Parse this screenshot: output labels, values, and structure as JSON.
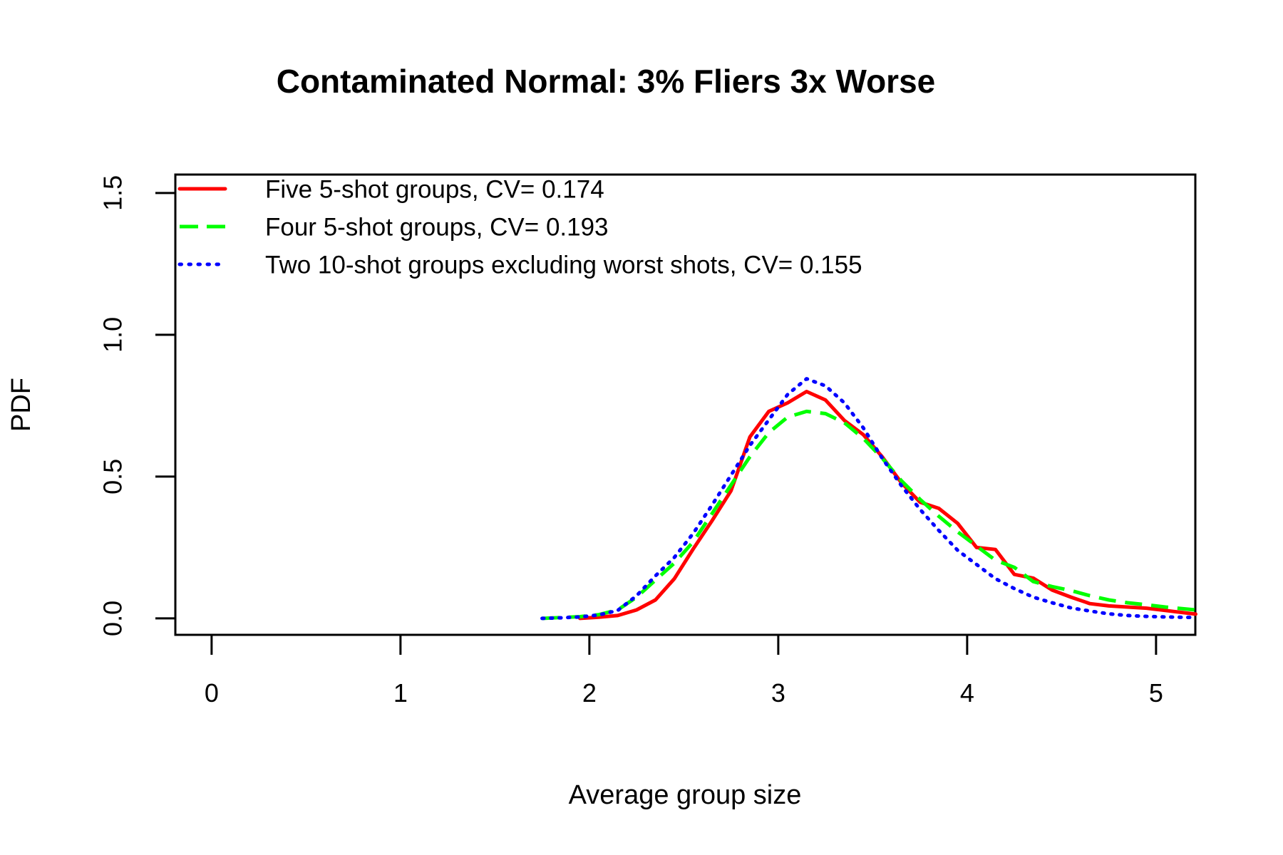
{
  "title": "Contaminated Normal: 3% Fliers 3x Worse",
  "axes": {
    "xlabel": "Average group size",
    "ylabel": "PDF"
  },
  "legend": {
    "items": [
      {
        "label": "Five 5-shot groups, CV= 0.174",
        "color": "#FF0000",
        "style": "solid"
      },
      {
        "label": "Four 5-shot groups, CV= 0.193",
        "color": "#00FF00",
        "style": "dashed"
      },
      {
        "label": "Two 10-shot groups excluding worst shots, CV= 0.155",
        "color": "#0000FF",
        "style": "dotted"
      }
    ]
  },
  "colors": {
    "background": "#FFFFFF",
    "axis": "#000000",
    "text": "#000000"
  },
  "chart_data": {
    "type": "line",
    "title": "Contaminated Normal: 3% Fliers 3x Worse",
    "xlabel": "Average group size",
    "ylabel": "PDF",
    "xlim": [
      -0.192,
      5.208
    ],
    "ylim": [
      -0.058,
      1.565
    ],
    "x_ticks": [
      0,
      1,
      2,
      3,
      4,
      5
    ],
    "x_tick_labels": [
      "0",
      "1",
      "2",
      "3",
      "4",
      "5"
    ],
    "y_ticks": [
      0,
      0.5,
      1.0,
      1.5
    ],
    "y_tick_labels": [
      "0.0",
      "0.5",
      "1.0",
      "1.5"
    ],
    "grid": false,
    "legend_position": "top-left-inside",
    "series": [
      {
        "name": "Five 5-shot groups, CV= 0.174",
        "color": "#FF0000",
        "style": "solid",
        "points": [
          [
            1.95,
            0.0
          ],
          [
            2.05,
            0.004
          ],
          [
            2.15,
            0.01
          ],
          [
            2.25,
            0.03
          ],
          [
            2.35,
            0.065
          ],
          [
            2.45,
            0.14
          ],
          [
            2.55,
            0.245
          ],
          [
            2.65,
            0.345
          ],
          [
            2.75,
            0.45
          ],
          [
            2.85,
            0.64
          ],
          [
            2.95,
            0.73
          ],
          [
            3.05,
            0.76
          ],
          [
            3.15,
            0.8
          ],
          [
            3.25,
            0.77
          ],
          [
            3.35,
            0.698
          ],
          [
            3.45,
            0.648
          ],
          [
            3.55,
            0.57
          ],
          [
            3.65,
            0.48
          ],
          [
            3.75,
            0.41
          ],
          [
            3.85,
            0.388
          ],
          [
            3.95,
            0.335
          ],
          [
            4.05,
            0.25
          ],
          [
            4.15,
            0.243
          ],
          [
            4.25,
            0.155
          ],
          [
            4.35,
            0.142
          ],
          [
            4.45,
            0.1
          ],
          [
            4.55,
            0.075
          ],
          [
            4.65,
            0.052
          ],
          [
            4.75,
            0.044
          ],
          [
            4.85,
            0.04
          ],
          [
            4.95,
            0.036
          ],
          [
            5.05,
            0.028
          ],
          [
            5.21,
            0.015
          ]
        ]
      },
      {
        "name": "Four 5-shot groups, CV= 0.193",
        "color": "#00FF00",
        "style": "dashed",
        "points": [
          [
            1.75,
            0.0
          ],
          [
            1.85,
            0.003
          ],
          [
            1.95,
            0.006
          ],
          [
            2.05,
            0.013
          ],
          [
            2.15,
            0.03
          ],
          [
            2.25,
            0.075
          ],
          [
            2.35,
            0.135
          ],
          [
            2.45,
            0.195
          ],
          [
            2.55,
            0.27
          ],
          [
            2.65,
            0.37
          ],
          [
            2.75,
            0.47
          ],
          [
            2.85,
            0.57
          ],
          [
            2.95,
            0.655
          ],
          [
            3.05,
            0.71
          ],
          [
            3.15,
            0.73
          ],
          [
            3.25,
            0.722
          ],
          [
            3.35,
            0.69
          ],
          [
            3.45,
            0.635
          ],
          [
            3.55,
            0.565
          ],
          [
            3.65,
            0.487
          ],
          [
            3.75,
            0.42
          ],
          [
            3.85,
            0.36
          ],
          [
            3.95,
            0.305
          ],
          [
            4.05,
            0.255
          ],
          [
            4.15,
            0.205
          ],
          [
            4.25,
            0.18
          ],
          [
            4.35,
            0.13
          ],
          [
            4.45,
            0.112
          ],
          [
            4.55,
            0.098
          ],
          [
            4.65,
            0.08
          ],
          [
            4.75,
            0.065
          ],
          [
            4.85,
            0.055
          ],
          [
            4.95,
            0.048
          ],
          [
            5.05,
            0.04
          ],
          [
            5.21,
            0.03
          ]
        ]
      },
      {
        "name": "Two 10-shot groups excluding worst shots, CV= 0.155",
        "color": "#0000FF",
        "style": "dotted",
        "points": [
          [
            1.75,
            0.0
          ],
          [
            1.85,
            0.002
          ],
          [
            1.95,
            0.005
          ],
          [
            2.05,
            0.012
          ],
          [
            2.15,
            0.028
          ],
          [
            2.25,
            0.08
          ],
          [
            2.35,
            0.15
          ],
          [
            2.45,
            0.215
          ],
          [
            2.55,
            0.3
          ],
          [
            2.65,
            0.4
          ],
          [
            2.75,
            0.505
          ],
          [
            2.85,
            0.61
          ],
          [
            2.95,
            0.7
          ],
          [
            3.05,
            0.79
          ],
          [
            3.15,
            0.845
          ],
          [
            3.25,
            0.82
          ],
          [
            3.35,
            0.76
          ],
          [
            3.45,
            0.672
          ],
          [
            3.55,
            0.565
          ],
          [
            3.65,
            0.47
          ],
          [
            3.75,
            0.385
          ],
          [
            3.85,
            0.31
          ],
          [
            3.95,
            0.24
          ],
          [
            4.05,
            0.19
          ],
          [
            4.15,
            0.14
          ],
          [
            4.25,
            0.105
          ],
          [
            4.35,
            0.075
          ],
          [
            4.45,
            0.055
          ],
          [
            4.55,
            0.037
          ],
          [
            4.65,
            0.026
          ],
          [
            4.75,
            0.016
          ],
          [
            4.85,
            0.01
          ],
          [
            4.95,
            0.007
          ],
          [
            5.05,
            0.005
          ],
          [
            5.21,
            0.003
          ]
        ]
      }
    ]
  }
}
